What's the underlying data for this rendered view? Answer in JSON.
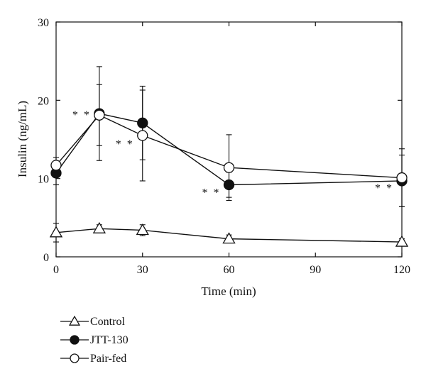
{
  "chart_data": {
    "type": "line",
    "xlabel": "Time (min)",
    "ylabel": "Insulin (ng/mL)",
    "xlim": [
      0,
      120
    ],
    "ylim": [
      0,
      30
    ],
    "xticks": [
      0,
      30,
      60,
      90,
      120
    ],
    "yticks": [
      0,
      10,
      20,
      30
    ],
    "grid": false,
    "legend_position": "bottom-left",
    "x": [
      0,
      15,
      30,
      60,
      120
    ],
    "series": [
      {
        "name": "Control",
        "marker": "open-triangle",
        "color": "#111111",
        "values": [
          3.1,
          3.6,
          3.4,
          2.3,
          1.9
        ],
        "error": [
          1.2,
          0.5,
          0.7,
          0.5,
          0.4
        ]
      },
      {
        "name": "JTT-130",
        "marker": "filled-circle",
        "color": "#111111",
        "values": [
          10.7,
          18.3,
          17.1,
          9.2,
          9.7
        ],
        "error": [
          1.5,
          6.0,
          4.7,
          1.6,
          3.3
        ]
      },
      {
        "name": "Pair-fed",
        "marker": "open-circle",
        "color": "#111111",
        "values": [
          11.7,
          18.1,
          15.5,
          11.4,
          10.1
        ],
        "error": [
          1.0,
          3.9,
          5.8,
          4.2,
          3.7
        ]
      }
    ],
    "annotations": [
      {
        "text": "* *",
        "x": 15,
        "y": 18.2
      },
      {
        "text": "* *",
        "x": 30,
        "y": 14.5
      },
      {
        "text": "* *",
        "x": 60,
        "y": 8.3
      },
      {
        "text": "* *",
        "x": 120,
        "y": 8.9
      }
    ]
  }
}
